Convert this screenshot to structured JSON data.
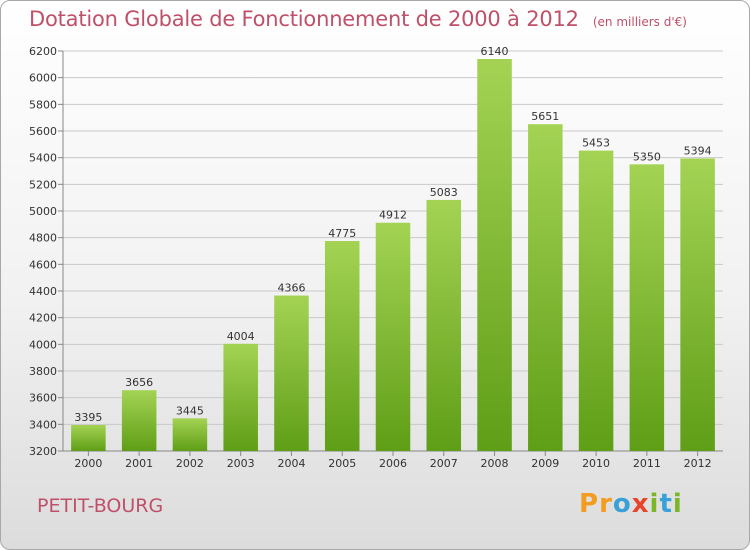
{
  "chart": {
    "title": "Dotation Globale de Fonctionnement de 2000 à 2012",
    "unit_note": "(en milliers d'€)",
    "commune": "PETIT-BOURG"
  },
  "logo": {
    "text": "Proxiti",
    "letters": [
      "P",
      "r",
      "o",
      "x",
      "i",
      "t",
      "i"
    ],
    "colors": [
      "#f39c1f",
      "#f39c1f",
      "#3aa0d8",
      "#e8442c",
      "#7bb629",
      "#3aa0d8",
      "#7bb629"
    ]
  },
  "colors": {
    "title": "#c0506a",
    "bar_top": "#a4d354",
    "bar_bottom": "#5f9e17",
    "grid": "#c9c9c9"
  },
  "chart_data": {
    "type": "bar",
    "title": "Dotation Globale de Fonctionnement de 2000 à 2012",
    "subtitle": "(en milliers d'€)",
    "categories": [
      "2000",
      "2001",
      "2002",
      "2003",
      "2004",
      "2005",
      "2006",
      "2007",
      "2008",
      "2009",
      "2010",
      "2011",
      "2012"
    ],
    "values": [
      3395,
      3656,
      3445,
      4004,
      4366,
      4775,
      4912,
      5083,
      6140,
      5651,
      5453,
      5350,
      5394
    ],
    "ylim": [
      3200,
      6200
    ],
    "yticks": [
      3200,
      3400,
      3600,
      3800,
      4000,
      4200,
      4400,
      4600,
      4800,
      5000,
      5200,
      5400,
      5600,
      5800,
      6000,
      6200
    ],
    "grid": true,
    "legend": "none",
    "xlabel": "",
    "ylabel": ""
  }
}
